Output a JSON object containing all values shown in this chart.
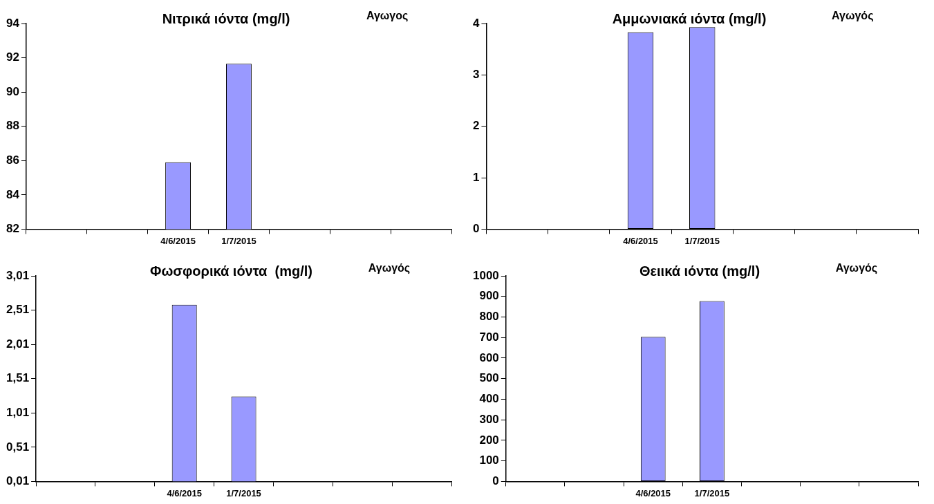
{
  "chart_data": [
    {
      "type": "bar",
      "title": "Νιτρικά ιόντα (mg/l)",
      "annotations": [
        "Αγωγος"
      ],
      "categories": [
        null,
        null,
        "4/6/2015",
        "1/7/2015",
        null,
        null,
        null
      ],
      "values": [
        null,
        null,
        85.9,
        91.65,
        null,
        null,
        null
      ],
      "color": "#9999ff",
      "ylim": [
        82,
        94
      ],
      "yticks": [
        82,
        84,
        86,
        88,
        90,
        92,
        94
      ],
      "grid": false,
      "legend": false
    },
    {
      "type": "bar",
      "title": "Αμμωνιακά ιόντα (mg/l)",
      "annotations": [
        "Αγωγός"
      ],
      "categories": [
        null,
        null,
        "4/6/2015",
        "1/7/2015",
        null,
        null,
        null
      ],
      "values": [
        null,
        null,
        3.83,
        3.93,
        null,
        null,
        null
      ],
      "color": "#9999ff",
      "ylim": [
        0,
        4
      ],
      "yticks": [
        0,
        1,
        2,
        3,
        4
      ],
      "grid": false,
      "legend": false
    },
    {
      "type": "bar",
      "title": "Φωσφορικά ιόντα  (mg/l)",
      "annotations": [
        "Αγωγός"
      ],
      "categories": [
        null,
        null,
        "4/6/2015",
        "1/7/2015",
        null,
        null,
        null
      ],
      "values": [
        null,
        null,
        2.59,
        1.25,
        null,
        null,
        null
      ],
      "color": "#9999ff",
      "ylim": [
        0.01,
        3.01
      ],
      "yticks": [
        {
          "value": 0.01,
          "label": "0,01"
        },
        {
          "value": 0.51,
          "label": "0,51"
        },
        {
          "value": 1.01,
          "label": "1,01"
        },
        {
          "value": 1.51,
          "label": "1,51"
        },
        {
          "value": 2.01,
          "label": "2,01"
        },
        {
          "value": 2.51,
          "label": "2,51"
        },
        {
          "value": 3.01,
          "label": "3,01"
        }
      ],
      "grid": false,
      "legend": false
    },
    {
      "type": "bar",
      "title": "Θειικά ιόντα (mg/l)",
      "annotations": [
        "Αγωγός"
      ],
      "categories": [
        null,
        null,
        "4/6/2015",
        "1/7/2015",
        null,
        null,
        null
      ],
      "values": [
        null,
        null,
        703,
        877,
        null,
        null,
        null
      ],
      "color": "#9999ff",
      "ylim": [
        0,
        1000
      ],
      "yticks": [
        0,
        100,
        200,
        300,
        400,
        500,
        600,
        700,
        800,
        900,
        1000
      ],
      "grid": false,
      "legend": false
    }
  ]
}
